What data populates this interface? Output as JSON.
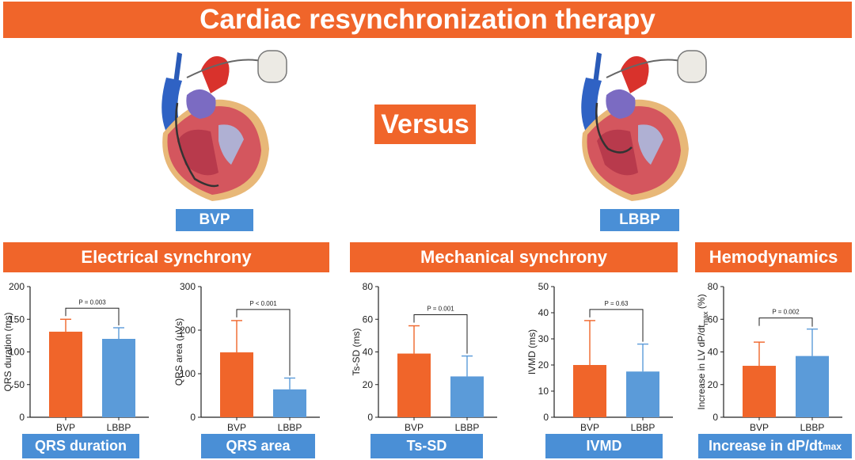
{
  "title": "Cardiac resynchronization therapy",
  "versus": "Versus",
  "devices": {
    "left_label": "BVP",
    "right_label": "LBBP"
  },
  "sections": {
    "electrical": "Electrical synchrony",
    "mechanical": "Mechanical synchrony",
    "hemodynamics": "Hemodynamics"
  },
  "metric_tags": {
    "qrs_duration": "QRS duration",
    "qrs_area": "QRS area",
    "ts_sd": "Ts-SD",
    "ivmd": "IVMD",
    "dpdt_prefix": "Increase in dP/dt",
    "dpdt_sub": "max"
  },
  "colors": {
    "accent_orange": "#f0652a",
    "accent_blue": "#4a8fd6",
    "bvp_bar": "#f0652a",
    "lbbp_bar": "#5b9bd9"
  },
  "chart_data": [
    {
      "type": "bar",
      "categories": [
        "BVP",
        "LBBP"
      ],
      "values": [
        131,
        120
      ],
      "error_upper": [
        150,
        137
      ],
      "ylabel": "QRS duration (ms)",
      "ylim": [
        0,
        200
      ],
      "yticks": [
        0,
        50,
        100,
        150,
        200
      ],
      "p_value": "P = 0.003"
    },
    {
      "type": "bar",
      "categories": [
        "BVP",
        "LBBP"
      ],
      "values": [
        149,
        64
      ],
      "error_upper": [
        222,
        90
      ],
      "ylabel": "QRS area (μVs)",
      "ylim": [
        0,
        300
      ],
      "yticks": [
        0,
        100,
        200,
        300
      ],
      "p_value": "P < 0.001"
    },
    {
      "type": "bar",
      "categories": [
        "BVP",
        "LBBP"
      ],
      "values": [
        39,
        25
      ],
      "error_upper": [
        56,
        37.5
      ],
      "ylabel": "Ts-SD (ms)",
      "ylim": [
        0,
        80
      ],
      "yticks": [
        0,
        20,
        40,
        60,
        80
      ],
      "p_value": "P = 0.001"
    },
    {
      "type": "bar",
      "categories": [
        "BVP",
        "LBBP"
      ],
      "values": [
        20,
        17.5
      ],
      "error_upper": [
        37,
        28
      ],
      "ylabel": "IVMD (ms)",
      "ylim": [
        0,
        50
      ],
      "yticks": [
        0,
        10,
        20,
        30,
        40,
        50
      ],
      "p_value": "P = 0.63"
    },
    {
      "type": "bar",
      "categories": [
        "BVP",
        "LBBP"
      ],
      "values": [
        31.5,
        37.5
      ],
      "error_upper": [
        46,
        54
      ],
      "ylabel": "Increase in LV dP/dt",
      "ylabel_sub": "max",
      "ylabel_suffix": " (%)",
      "ylim": [
        0,
        80
      ],
      "yticks": [
        0,
        20,
        40,
        60,
        80
      ],
      "p_value": "P = 0.002"
    }
  ]
}
